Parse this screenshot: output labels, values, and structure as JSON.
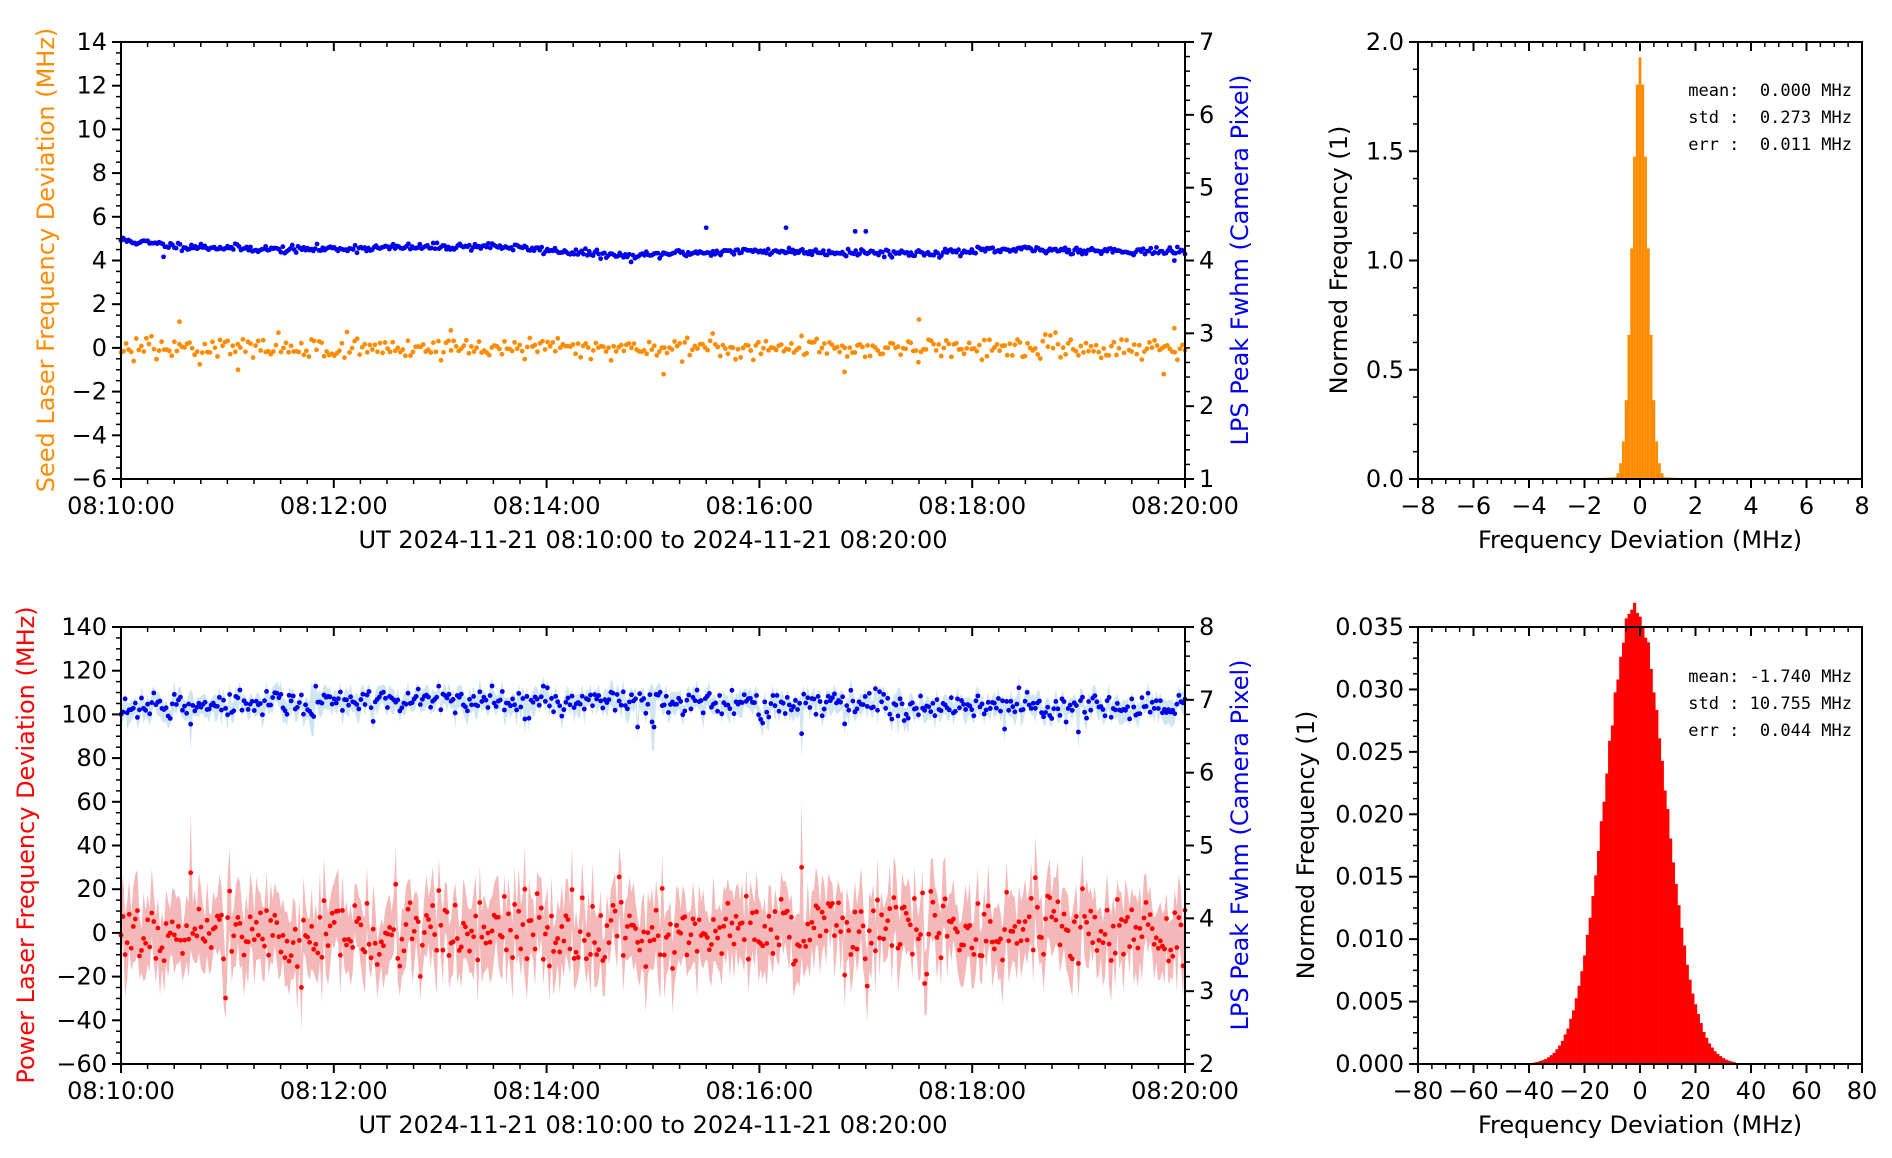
{
  "colors": {
    "seed": "#ff8c00",
    "seed_hist": "#ff8c00",
    "power": "#ff0000",
    "power_band": "#f4b8b8",
    "lps": "#0000ee",
    "lps_band": "#cfe6f0",
    "axis": "#000000"
  },
  "chart_data": [
    {
      "type": "scatter",
      "id": "seed-time-series",
      "title": "",
      "x_tick_labels": [
        "08:10:00",
        "08:12:00",
        "08:14:00",
        "08:16:00",
        "08:18:00",
        "08:20:00"
      ],
      "x_range_minutes": [
        0,
        10
      ],
      "xlabel": "UT 2024-11-21 08:10:00  to  2024-11-21 08:20:00",
      "ylabel_left": "Seed Laser Frequency Deviation (MHz)",
      "ylabel_right": "LPS Peak Fwhm (Camera Pixel)",
      "ylim_left": [
        -6,
        14
      ],
      "yticks_left": [
        -6,
        -4,
        -2,
        0,
        2,
        4,
        6,
        8,
        10,
        12,
        14
      ],
      "ylim_right": [
        1,
        7
      ],
      "yticks_right": [
        1,
        2,
        3,
        4,
        5,
        6,
        7
      ],
      "series": [
        {
          "name": "Seed Laser Frequency Deviation",
          "axis": "left",
          "baseline_profile": [
            [
              0,
              0.0
            ],
            [
              10,
              0.0
            ]
          ],
          "noise_std": 0.25,
          "count": 420,
          "outliers": [
            [
              0.55,
              1.2
            ],
            [
              1.1,
              -1.0
            ],
            [
              3.1,
              0.8
            ],
            [
              5.1,
              -1.2
            ],
            [
              6.8,
              -1.1
            ],
            [
              7.5,
              1.3
            ],
            [
              9.8,
              -1.2
            ],
            [
              9.9,
              0.9
            ]
          ]
        },
        {
          "name": "LPS Peak Fwhm",
          "axis": "right",
          "baseline_profile": [
            [
              0,
              4.28
            ],
            [
              0.5,
              4.2
            ],
            [
              1.5,
              4.15
            ],
            [
              3.5,
              4.2
            ],
            [
              4.8,
              4.05
            ],
            [
              5.2,
              4.1
            ],
            [
              6.0,
              4.13
            ],
            [
              7.5,
              4.1
            ],
            [
              8.5,
              4.15
            ],
            [
              10,
              4.12
            ]
          ],
          "noise_std": 0.025,
          "count": 560,
          "outliers": [
            [
              5.5,
              4.45
            ],
            [
              6.25,
              4.45
            ],
            [
              6.9,
              4.4
            ],
            [
              7.0,
              4.4
            ],
            [
              0.4,
              4.05
            ],
            [
              9.9,
              4.0
            ]
          ]
        }
      ]
    },
    {
      "type": "bar",
      "id": "seed-histogram",
      "xlabel": "Frequency Deviation (MHz)",
      "ylabel": "Normed Frequency (1)",
      "xlim": [
        -8,
        8
      ],
      "xticks": [
        -8,
        -6,
        -4,
        -2,
        0,
        2,
        4,
        6,
        8
      ],
      "ylim": [
        0,
        2.0
      ],
      "yticks": [
        "0.0",
        "0.5",
        "1.0",
        "1.5",
        "2.0"
      ],
      "bin_width": 0.1,
      "peak": 1.93,
      "mean": 0.0,
      "std": 0.273,
      "stats_lines": [
        "mean:  0.000 MHz",
        "std :  0.273 MHz",
        "err :  0.011 MHz"
      ]
    },
    {
      "type": "scatter",
      "id": "power-time-series",
      "title": "",
      "x_tick_labels": [
        "08:10:00",
        "08:12:00",
        "08:14:00",
        "08:16:00",
        "08:18:00",
        "08:20:00"
      ],
      "x_range_minutes": [
        0,
        10
      ],
      "xlabel": "UT 2024-11-21 08:10:00  to  2024-11-21 08:20:00",
      "ylabel_left": "Power Laser Frequency Deviation (MHz)",
      "ylabel_right": "LPS Peak Fwhm (Camera Pixel)",
      "ylim_left": [
        -60,
        140
      ],
      "yticks_left": [
        -60,
        -40,
        -20,
        0,
        20,
        40,
        60,
        80,
        100,
        120,
        140
      ],
      "ylim_right": [
        2,
        8
      ],
      "yticks_right": [
        2,
        3,
        4,
        5,
        6,
        7,
        8
      ],
      "series": [
        {
          "name": "Power Laser Frequency Deviation",
          "axis": "left",
          "baseline_profile": [
            [
              0,
              0
            ],
            [
              10,
              0
            ]
          ],
          "noise_std": 8.5,
          "band_halfwidth": 15,
          "count": 520,
          "spikes": [
            [
              0.65,
              55
            ],
            [
              3.8,
              40
            ],
            [
              6.4,
              60
            ]
          ]
        },
        {
          "name": "LPS Peak Fwhm",
          "axis": "right",
          "baseline_profile": [
            [
              0,
              6.9
            ],
            [
              2.5,
              7.0
            ],
            [
              10,
              6.9
            ]
          ],
          "noise_std": 0.09,
          "band_halfwidth": 0.15,
          "count": 520,
          "dips": [
            [
              0.65,
              6.3
            ],
            [
              1.8,
              6.5
            ],
            [
              3.8,
              6.5
            ],
            [
              5.0,
              6.3
            ],
            [
              6.4,
              6.2
            ],
            [
              7.3,
              6.5
            ],
            [
              8.3,
              6.4
            ],
            [
              9.0,
              6.3
            ]
          ]
        }
      ]
    },
    {
      "type": "bar",
      "id": "power-histogram",
      "xlabel": "Frequency Deviation (MHz)",
      "ylabel": "Normed Frequency (1)",
      "xlim": [
        -80,
        80
      ],
      "xticks": [
        -80,
        -60,
        -40,
        -20,
        0,
        20,
        40,
        60,
        80
      ],
      "ylim": [
        0,
        0.035
      ],
      "yticks": [
        "0.000",
        "0.005",
        "0.010",
        "0.015",
        "0.020",
        "0.025",
        "0.030",
        "0.035"
      ],
      "bin_width": 1,
      "peak": 0.0368,
      "mean": -1.74,
      "std": 10.755,
      "stats_lines": [
        "mean: -1.740 MHz",
        "std : 10.755 MHz",
        "err :  0.044 MHz"
      ]
    }
  ]
}
